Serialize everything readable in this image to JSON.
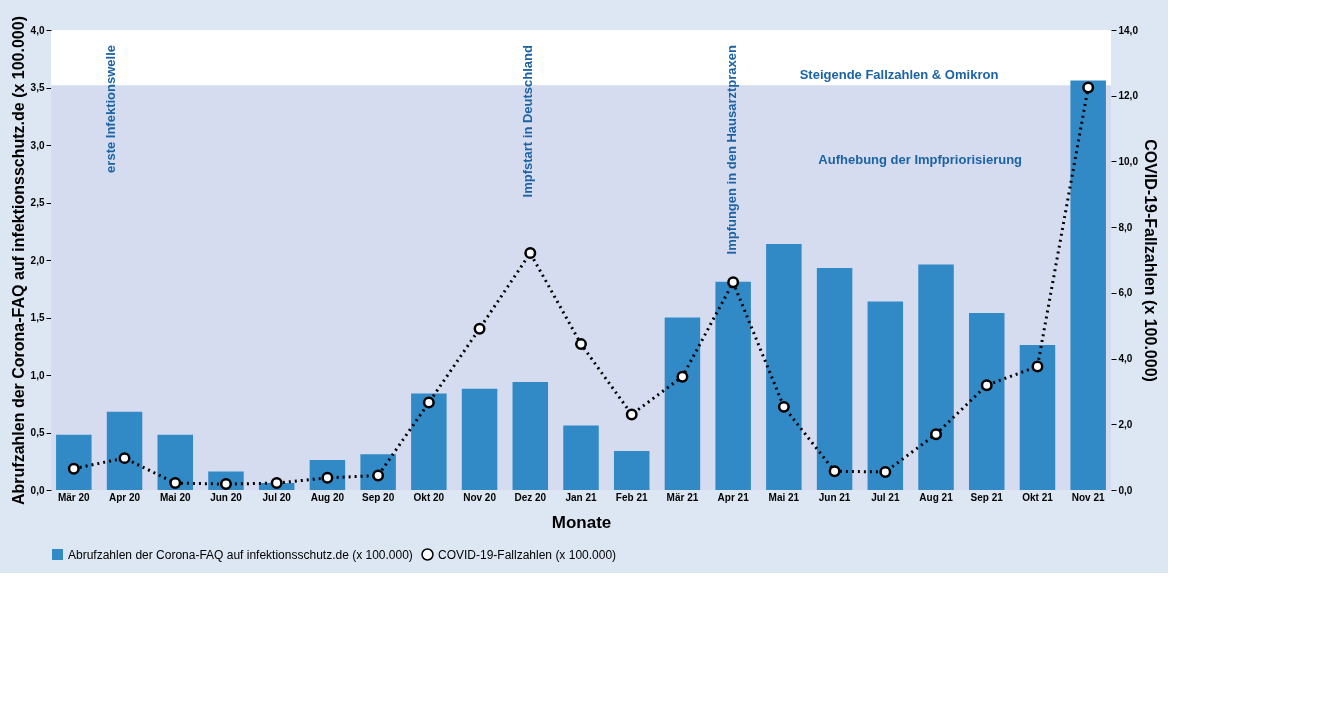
{
  "chart_data": {
    "type": "bar",
    "xlabel": "Monate",
    "ylabel": "Abrufzahlen der Corona-FAQ auf infektionsschutz.de (x 100.000)",
    "y2label": "COVID-19-Fallzahlen (x 100.000)",
    "categories": [
      "Mär 20",
      "Apr 20",
      "Mai 20",
      "Jun 20",
      "Jul 20",
      "Aug 20",
      "Sep 20",
      "Okt 20",
      "Nov 20",
      "Dez 20",
      "Jan 21",
      "Feb 21",
      "Mär 21",
      "Apr 21",
      "Mai 21",
      "Jun 21",
      "Jul 21",
      "Aug 21",
      "Sep 21",
      "Okt 21",
      "Nov 21"
    ],
    "series": [
      {
        "name": "Abrufzahlen der Corona-FAQ auf infektionsschutz.de (x 100.000)",
        "color": "#318ac6",
        "values": [
          0.48,
          0.68,
          0.48,
          0.16,
          0.06,
          0.26,
          0.31,
          0.84,
          0.88,
          0.94,
          0.56,
          0.34,
          1.5,
          1.81,
          2.14,
          1.93,
          1.64,
          1.96,
          1.54,
          1.26,
          3.56
        ]
      },
      {
        "name": "COVID-19-Fallzahlen (x 100.000)",
        "type": "line",
        "axis": "y2",
        "color": "#000000",
        "marker": "circle",
        "line_style": "dotted",
        "values": [
          0.65,
          0.97,
          0.21,
          0.18,
          0.21,
          0.37,
          0.44,
          2.66,
          4.91,
          7.21,
          4.44,
          2.3,
          3.45,
          6.32,
          2.53,
          0.57,
          0.55,
          1.7,
          3.19,
          3.76,
          12.25
        ]
      }
    ],
    "ylim": [
      0,
      4
    ],
    "yticks": [
      {
        "value": 0,
        "label": "0,0"
      },
      {
        "value": 0.5,
        "label": "0,5"
      },
      {
        "value": 1,
        "label": "1,0"
      },
      {
        "value": 1.5,
        "label": "1,5"
      },
      {
        "value": 2,
        "label": "2,0"
      },
      {
        "value": 2.5,
        "label": "2,5"
      },
      {
        "value": 3,
        "label": "3,0"
      },
      {
        "value": 3.5,
        "label": "3,5"
      },
      {
        "value": 4,
        "label": "4,0"
      }
    ],
    "y2lim": [
      0,
      14
    ],
    "y2ticks": [
      {
        "value": 0,
        "label": "0,0"
      },
      {
        "value": 2,
        "label": "2,0"
      },
      {
        "value": 4,
        "label": "4,0"
      },
      {
        "value": 6,
        "label": "6,0"
      },
      {
        "value": 8,
        "label": "8,0"
      },
      {
        "value": 10,
        "label": "10,0"
      },
      {
        "value": 12,
        "label": "12,0"
      },
      {
        "value": 14,
        "label": "14,0"
      }
    ],
    "bands": [
      {
        "axis": "y",
        "from": 0,
        "to": 3.52,
        "color": "#d6dcf0"
      }
    ],
    "annotations": [
      "erste Infektionswelle",
      "Impfstart in Deutschland",
      "Impfungen in den Hausarztpraxen",
      "Aufhebung der Impfpriorisierung",
      "Steigende Fallzahlen & Omikron"
    ],
    "grid": false,
    "legend": "bottom left"
  }
}
